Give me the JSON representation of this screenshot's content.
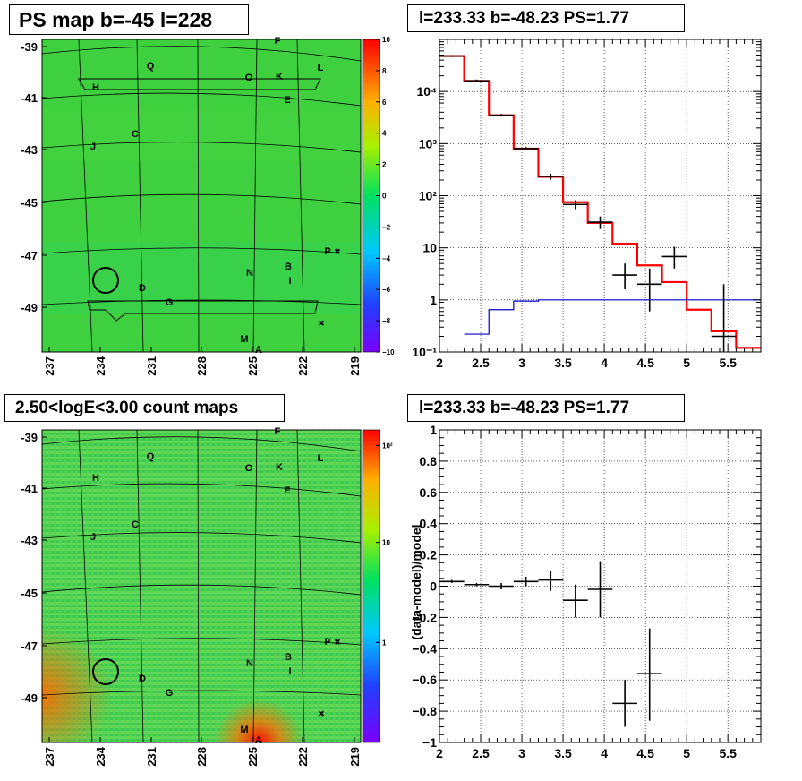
{
  "panels": {
    "map_top_title": "PS map b=-45 l=228",
    "spec_top_title": "l=233.33 b=-48.23 PS=1.77",
    "map_bottom_title": "2.50<logE<3.00 count maps",
    "spec_bottom_title": "l=233.33 b=-48.23 PS=1.77"
  },
  "colors": {
    "map_background": "#3ed03e",
    "spectrum_model": "#ff0000",
    "background_model": "#0000cc",
    "data_points": "#000000"
  },
  "maps": {
    "x_ticks": [
      "237",
      "234",
      "231",
      "228",
      "225",
      "222",
      "219"
    ],
    "y_ticks": [
      "-39",
      "-41",
      "-43",
      "-45",
      "-47",
      "-49"
    ],
    "sources": [
      "F",
      "Q",
      "O",
      "K",
      "L",
      "H",
      "E",
      "C",
      "J",
      "P",
      "N",
      "B",
      "I",
      "D",
      "G",
      "M",
      "A"
    ],
    "top_colorbar": {
      "ticks": [
        "10",
        "8",
        "6",
        "4",
        "2",
        "0",
        "−2",
        "−4",
        "−6",
        "−8",
        "−10"
      ]
    },
    "bottom_colorbar": {
      "ticks": [
        "10²",
        "10",
        "1"
      ]
    }
  },
  "chart_data": [
    {
      "type": "line",
      "title": "l=233.33 b=-48.23 PS=1.77",
      "xlabel": "",
      "ylabel": "",
      "xlim": [
        2.0,
        5.9
      ],
      "ylim": [
        0.1,
        100000
      ],
      "ylog": true,
      "grid": true,
      "x_tick_labels": [
        "2",
        "2.5",
        "3",
        "3.5",
        "4",
        "4.5",
        "5",
        "5.5"
      ],
      "y_tick_labels": [
        "10⁻¹",
        "1",
        "10",
        "10²",
        "10³",
        "10⁴"
      ],
      "series": [
        {
          "kind": "step",
          "color": "#ff0000",
          "edges": [
            2.0,
            2.3,
            2.6,
            2.9,
            3.2,
            3.5,
            3.8,
            4.1,
            4.4,
            4.7,
            5.0,
            5.3,
            5.6,
            5.9
          ],
          "values": [
            48000,
            16000,
            3500,
            800,
            230,
            75,
            30,
            12,
            4.6,
            2.2,
            0.65,
            0.25,
            0.12
          ]
        },
        {
          "kind": "step",
          "color": "#0000cc",
          "edges": [
            2.3,
            2.6,
            2.9,
            3.2,
            3.5,
            3.8,
            4.1,
            4.4,
            4.7,
            5.0,
            5.3,
            5.6,
            5.9
          ],
          "values": [
            0.22,
            0.65,
            0.95,
            1.0,
            1.0,
            1.0,
            1.0,
            1.0,
            1.0,
            1.0,
            1.0,
            1.0
          ]
        },
        {
          "kind": "errors",
          "color": "#000000",
          "points": [
            {
              "x": 2.15,
              "y": 48000,
              "xerr": 0.15,
              "ylo": 46000,
              "yhi": 50000
            },
            {
              "x": 2.45,
              "y": 16000,
              "xerr": 0.15,
              "ylo": 15000,
              "yhi": 17000
            },
            {
              "x": 2.75,
              "y": 3500,
              "xerr": 0.15,
              "ylo": 3300,
              "yhi": 3700
            },
            {
              "x": 3.05,
              "y": 800,
              "xerr": 0.15,
              "ylo": 740,
              "yhi": 860
            },
            {
              "x": 3.35,
              "y": 235,
              "xerr": 0.15,
              "ylo": 205,
              "yhi": 265
            },
            {
              "x": 3.65,
              "y": 68,
              "xerr": 0.15,
              "ylo": 55,
              "yhi": 82
            },
            {
              "x": 3.95,
              "y": 31,
              "xerr": 0.15,
              "ylo": 23,
              "yhi": 40
            },
            {
              "x": 4.25,
              "y": 3.0,
              "xerr": 0.15,
              "ylo": 1.6,
              "yhi": 5.0
            },
            {
              "x": 4.55,
              "y": 2.0,
              "xerr": 0.15,
              "ylo": 0.6,
              "yhi": 4.0
            },
            {
              "x": 4.85,
              "y": 6.8,
              "xerr": 0.15,
              "ylo": 4.0,
              "yhi": 10.5
            },
            {
              "x": 5.45,
              "y": 0.2,
              "xerr": 0.15,
              "ylo": 0.1,
              "yhi": 2.0
            }
          ]
        }
      ]
    },
    {
      "type": "scatter",
      "title": "l=233.33 b=-48.23 PS=1.77",
      "xlabel": "",
      "ylabel": "(data-model)/model",
      "xlim": [
        2.0,
        5.9
      ],
      "ylim": [
        -1.0,
        1.0
      ],
      "grid": true,
      "x_tick_labels": [
        "2",
        "2.5",
        "3",
        "3.5",
        "4",
        "4.5",
        "5",
        "5.5"
      ],
      "y_tick_labels": [
        "−1",
        "−0.8",
        "−0.6",
        "−0.4",
        "−0.2",
        "0",
        "0.2",
        "0.4",
        "0.6",
        "0.8",
        "1"
      ],
      "series": [
        {
          "kind": "errors",
          "color": "#000000",
          "points": [
            {
              "x": 2.15,
              "y": 0.03,
              "xerr": 0.15,
              "ylo": 0.02,
              "yhi": 0.04
            },
            {
              "x": 2.45,
              "y": 0.01,
              "xerr": 0.15,
              "ylo": 0.0,
              "yhi": 0.02
            },
            {
              "x": 2.75,
              "y": 0.0,
              "xerr": 0.15,
              "ylo": -0.02,
              "yhi": 0.02
            },
            {
              "x": 3.05,
              "y": 0.03,
              "xerr": 0.15,
              "ylo": 0.0,
              "yhi": 0.06
            },
            {
              "x": 3.35,
              "y": 0.04,
              "xerr": 0.15,
              "ylo": -0.03,
              "yhi": 0.1
            },
            {
              "x": 3.65,
              "y": -0.09,
              "xerr": 0.15,
              "ylo": -0.2,
              "yhi": 0.01
            },
            {
              "x": 3.95,
              "y": -0.02,
              "xerr": 0.15,
              "ylo": -0.2,
              "yhi": 0.16
            },
            {
              "x": 4.25,
              "y": -0.75,
              "xerr": 0.15,
              "ylo": -0.9,
              "yhi": -0.6
            },
            {
              "x": 4.55,
              "y": -0.56,
              "xerr": 0.15,
              "ylo": -0.86,
              "yhi": -0.27
            }
          ]
        }
      ]
    }
  ]
}
